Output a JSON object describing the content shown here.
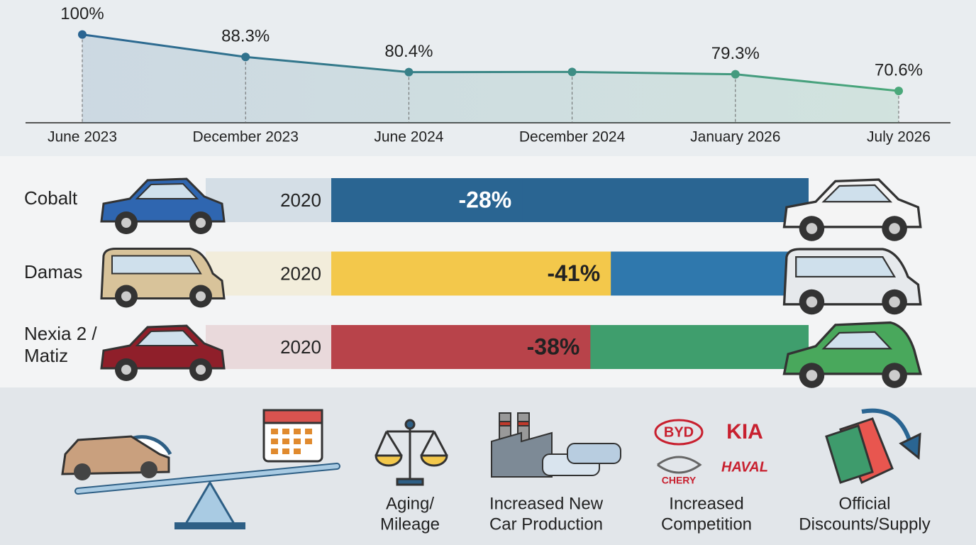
{
  "chart_data": [
    {
      "type": "line",
      "categories": [
        "June 2023",
        "December 2023",
        "June 2024",
        "December 2024",
        "January 2026",
        "July 2026"
      ],
      "values": [
        100,
        88.3,
        80.4,
        80.5,
        79.3,
        70.6
      ],
      "value_labels": [
        "100%",
        "88.3%",
        "80.4%",
        null,
        "79.3%",
        "70.6%"
      ],
      "color": "#2a6592",
      "color_end": "#4aa87a",
      "ylim": [
        54,
        118
      ]
    },
    {
      "type": "bar",
      "categories": [
        "Cobalt",
        "Damas",
        "Nexia 2 / Matiz"
      ],
      "year_labels": [
        "2020",
        "2020",
        "2020"
      ],
      "values": [
        -28,
        -41,
        -38
      ],
      "value_labels": [
        "-28%",
        "-41%",
        "-38%"
      ],
      "colors": [
        "#2a6592",
        "#f3c84b",
        "#b8434a"
      ],
      "rest_colors": [
        "#2a6592",
        "#2f78ad",
        "#3f9e6d"
      ],
      "label_colors": [
        "#ffffff",
        "#222222",
        "#222222"
      ],
      "xlim": [
        0,
        -70
      ]
    }
  ],
  "brands": [
    "BYD",
    "KIA",
    "CHERY",
    "HAVAL"
  ],
  "factors": [
    [
      "Aging/",
      "Mileage"
    ],
    [
      "Increased New",
      "Car Production"
    ],
    [
      "Increased",
      "Competition"
    ],
    [
      "Official",
      "Discounts/Supply"
    ]
  ]
}
